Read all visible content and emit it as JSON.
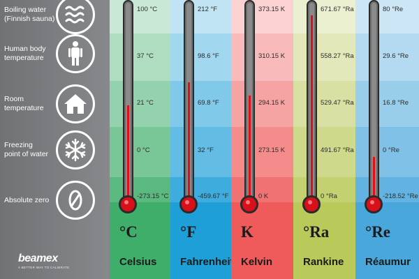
{
  "reference_points": [
    {
      "label": "Boiling water\n(Finnish sauna)",
      "icon": "steam-waves-icon"
    },
    {
      "label": "Human body\ntemperature",
      "icon": "person-icon"
    },
    {
      "label": "Room\ntemperature",
      "icon": "house-icon"
    },
    {
      "label": "Freezing\npoint of water",
      "icon": "snowflake-icon"
    },
    {
      "label": "Absolute zero",
      "icon": "zero-icon"
    }
  ],
  "brand": {
    "name": "beamex",
    "tagline": "A BETTER WAY TO CALIBRATE"
  },
  "scales": [
    {
      "symbol": "°C",
      "name": "Celsius",
      "color": "#3fae6a",
      "values": [
        "100 °C",
        "37 °C",
        "21 °C",
        "0 °C",
        "-273.15 °C"
      ],
      "mercury_level": 0.47
    },
    {
      "symbol": "°F",
      "name": "Fahrenheit",
      "color": "#1e9fd8",
      "values": [
        "212 °F",
        "98.6 °F",
        "69.8 °F",
        "32 °F",
        "-459.67 °F"
      ],
      "mercury_level": 0.59
    },
    {
      "symbol": "K",
      "name": "Kelvin",
      "color": "#ef5b5b",
      "values": [
        "373.15 K",
        "310.15 K",
        "294.15 K",
        "273.15 K",
        "0 K"
      ],
      "mercury_level": 0.52
    },
    {
      "symbol": "°Ra",
      "name": "Rankine",
      "color": "#b9c95a",
      "values": [
        "671.67 °Ra",
        "558.27 °Ra",
        "529.47 °Ra",
        "491.67 °Ra",
        "0 °Ra"
      ],
      "mercury_level": 0.93
    },
    {
      "symbol": "°Re",
      "name": "Réaumur",
      "color": "#49a7dc",
      "values": [
        "80 °Re",
        "29.6 °Re",
        "16.8 °Re",
        "0 °Re",
        "-218.52 °Re"
      ],
      "mercury_level": 0.21
    }
  ]
}
